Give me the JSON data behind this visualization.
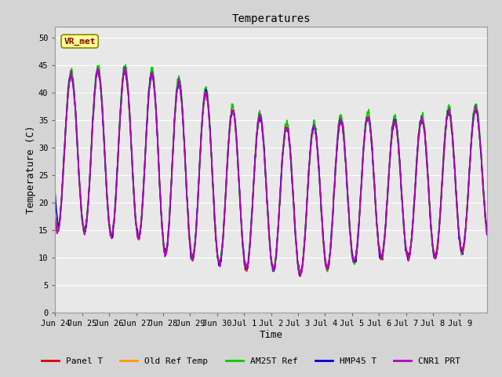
{
  "title": "Temperatures",
  "xlabel": "Time",
  "ylabel": "Temperature (C)",
  "ylim": [
    0,
    52
  ],
  "yticks": [
    0,
    5,
    10,
    15,
    20,
    25,
    30,
    35,
    40,
    45,
    50
  ],
  "bg_color": "#d4d4d4",
  "plot_bg_color": "#e8e8e8",
  "grid_color": "#ffffff",
  "annotation_text": "VR_met",
  "annotation_bg": "#ffff99",
  "annotation_border": "#888800",
  "legend_entries": [
    "Panel T",
    "Old Ref Temp",
    "AM25T Ref",
    "HMP45 T",
    "CNR1 PRT"
  ],
  "line_colors": [
    "#dd0000",
    "#ff9900",
    "#00cc00",
    "#0000dd",
    "#bb00bb"
  ],
  "line_widths": [
    1.2,
    1.2,
    1.2,
    1.2,
    1.2
  ],
  "num_days": 16,
  "points_per_day": 144,
  "tick_labels": [
    "Jun 24",
    "Jun 25",
    "Jun 26",
    "Jun 27",
    "Jun 28",
    "Jun 29",
    "Jun 30",
    "Jul 1",
    "Jul 2",
    "Jul 3",
    "Jul 4",
    "Jul 5",
    "Jul 6",
    "Jul 7",
    "Jul 8",
    "Jul 9"
  ],
  "font_family": "monospace"
}
